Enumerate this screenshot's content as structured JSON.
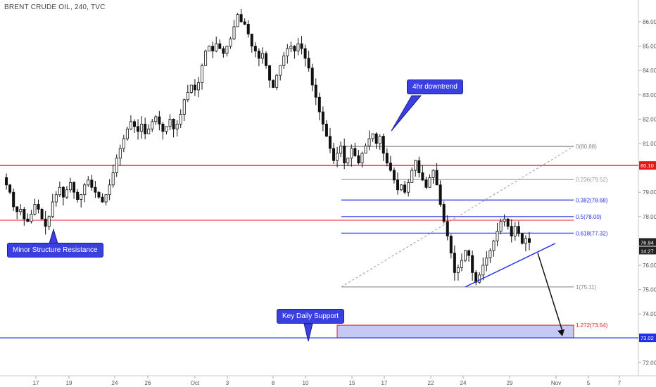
{
  "header": {
    "title": "BRENT CRUDE OIL, 240, TVC"
  },
  "chart_data": {
    "type": "candlestick",
    "ylim": [
      71.6,
      86.9
    ],
    "y_ticks": [
      "86.00",
      "85.00",
      "84.00",
      "83.00",
      "82.00",
      "81.00",
      "79.00",
      "78.00",
      "77.00",
      "76.00",
      "75.00",
      "74.00",
      "72.00"
    ],
    "x_ticks": [
      "17",
      "19",
      "24",
      "26",
      "Oct",
      "3",
      "8",
      "10",
      "15",
      "17",
      "22",
      "24",
      "29",
      "Nov",
      "5",
      "7"
    ],
    "price_path": [
      79.6,
      79.3,
      79.0,
      78.4,
      78.2,
      78.3,
      77.9,
      77.8,
      78.1,
      78.5,
      78.3,
      77.9,
      77.6,
      78.0,
      78.6,
      78.9,
      79.2,
      78.8,
      79.1,
      79.4,
      79.0,
      78.7,
      78.9,
      79.3,
      79.5,
      79.2,
      79.0,
      78.8,
      78.6,
      78.9,
      79.3,
      79.8,
      80.4,
      80.8,
      81.2,
      81.6,
      81.9,
      81.7,
      81.5,
      81.8,
      81.4,
      81.6,
      81.9,
      82.1,
      81.8,
      81.5,
      81.7,
      82.0,
      81.6,
      81.8,
      82.2,
      82.8,
      83.1,
      83.4,
      83.2,
      83.5,
      84.2,
      84.8,
      85.0,
      84.8,
      85.1,
      84.9,
      84.7,
      85.0,
      85.3,
      85.8,
      86.3,
      86.0,
      85.9,
      85.5,
      85.0,
      84.8,
      84.5,
      84.7,
      84.2,
      83.6,
      83.3,
      83.8,
      84.2,
      84.6,
      84.9,
      85.0,
      84.8,
      85.1,
      84.9,
      84.5,
      84.1,
      83.4,
      82.9,
      82.3,
      81.8,
      81.3,
      80.8,
      80.3,
      80.6,
      80.9,
      80.2,
      80.4,
      80.8,
      80.5,
      80.2,
      80.6,
      80.9,
      81.2,
      81.4,
      81.0,
      81.3,
      80.6,
      80.2,
      79.9,
      79.5,
      79.1,
      79.3,
      79.0,
      79.4,
      79.9,
      80.3,
      79.8,
      79.5,
      79.2,
      79.6,
      79.9,
      79.3,
      78.5,
      77.8,
      77.2,
      76.5,
      75.7,
      75.9,
      76.2,
      76.6,
      76.4,
      75.7,
      75.3,
      75.6,
      76.0,
      76.3,
      76.6,
      77.0,
      77.4,
      77.8,
      77.9,
      77.6,
      77.2,
      77.6,
      77.3,
      76.9,
      77.1,
      76.94
    ],
    "price_lines": [
      {
        "value": 80.1,
        "label": "80.10",
        "color": "#e11a1a"
      },
      {
        "value": 73.02,
        "label": "73.02",
        "color": "#1f2ff0"
      }
    ],
    "price_tags": [
      {
        "label": "76.94",
        "color": "#222222"
      },
      {
        "label": "14:27",
        "color": "#222222"
      }
    ],
    "minor_resistance": 77.85,
    "fibonacci": [
      {
        "ratio": 0,
        "label": "0(80.88)",
        "value": 80.88,
        "color": "#888888"
      },
      {
        "ratio": 0.236,
        "label": "0.236(79.52)",
        "value": 79.52,
        "color": "#999999"
      },
      {
        "ratio": 0.382,
        "label": "0.382(78.68)",
        "value": 78.68,
        "color": "#2432e8"
      },
      {
        "ratio": 0.5,
        "label": "0.5(78.00)",
        "value": 78.0,
        "color": "#2432e8"
      },
      {
        "ratio": 0.618,
        "label": "0.618(77.32)",
        "value": 77.32,
        "color": "#2432e8"
      },
      {
        "ratio": 1,
        "label": "1(75.11)",
        "value": 75.11,
        "color": "#888888"
      },
      {
        "ratio": 1.272,
        "label": "1.272(73.54)",
        "value": 73.54,
        "color": "#e11a1a"
      }
    ],
    "support_zone": [
      73.02,
      73.54
    ],
    "trendline": [
      [
        75.11,
        76.9
      ]
    ],
    "annotations": [
      {
        "text": "4hr downtrend"
      },
      {
        "text": "Minor Structure Resistance"
      },
      {
        "text": "Key Daily Support"
      }
    ]
  }
}
